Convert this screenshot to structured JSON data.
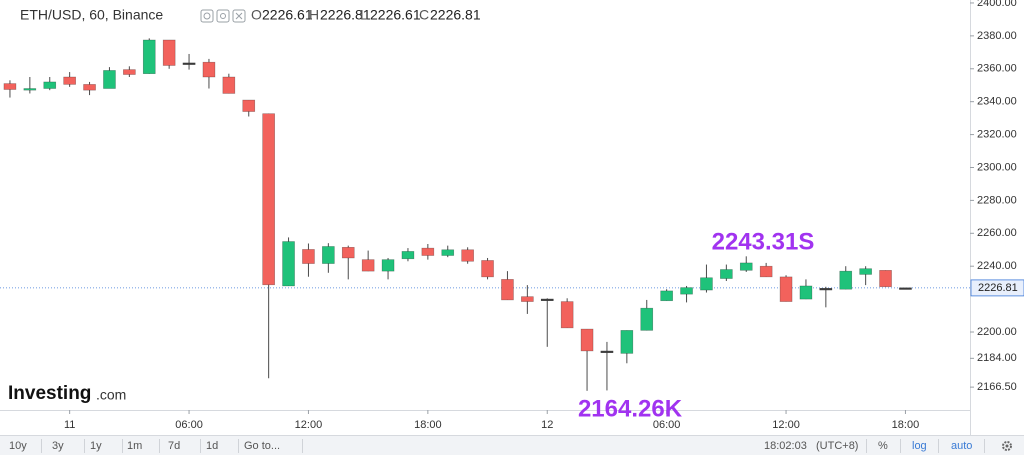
{
  "chart_data": {
    "type": "candlestick",
    "title": "ETH/USD, 60, Binance",
    "ohlc_labels": [
      "O",
      "H",
      "L",
      "C"
    ],
    "categories": [
      null,
      null,
      null,
      "11",
      null,
      null,
      null,
      null,
      null,
      "06:00",
      null,
      null,
      null,
      null,
      null,
      "12:00",
      null,
      null,
      null,
      null,
      null,
      "18:00",
      null,
      null,
      null,
      null,
      null,
      "12",
      null,
      null,
      null,
      null,
      null,
      "06:00",
      null,
      null,
      null,
      null,
      null,
      "12:00",
      null,
      null,
      null,
      null,
      null,
      "18:00"
    ],
    "open": [
      2351,
      2347,
      2348,
      2355,
      2350.5,
      2348,
      2359.5,
      2357,
      2377.5,
      2363.5,
      2364,
      2355,
      2341,
      2332.7,
      2228,
      2250.2,
      2241.6,
      2251.5,
      2244,
      2237,
      2244.5,
      2251,
      2246.5,
      2250,
      2243.5,
      2232,
      2221.5,
      2220,
      2218.5,
      2201.8,
      2188,
      2187,
      2201,
      2219,
      2223,
      2225.5,
      2232.5,
      2237.5,
      2240,
      2233.5,
      2220,
      2226.5,
      2226,
      2235,
      2237.5,
      2226.61
    ],
    "high": [
      2353,
      2355,
      2355,
      2358,
      2352,
      2361,
      2361.5,
      2378.5,
      2377.5,
      2369,
      2366,
      2357,
      2341,
      2332.7,
      2257.5,
      2253.8,
      2254,
      2252.5,
      2249.5,
      2245,
      2251,
      2253.5,
      2252.5,
      2251.5,
      2245,
      2237,
      2228.5,
      2220.5,
      2220.5,
      2201.8,
      2194,
      2201,
      2219.5,
      2226,
      2228,
      2241,
      2241,
      2246,
      2242,
      2234.5,
      2232,
      2227.5,
      2240,
      2240,
      2237.5,
      2226.81
    ],
    "low": [
      2342.5,
      2345,
      2347,
      2349,
      2344,
      2348,
      2355,
      2357,
      2360,
      2359.5,
      2348,
      2345,
      2331,
      2171.9,
      2228,
      2233.6,
      2236,
      2232,
      2237,
      2232,
      2243,
      2244,
      2245.5,
      2241.5,
      2232,
      2219.5,
      2211,
      2191,
      2202.5,
      2164.26,
      2164.5,
      2181,
      2201,
      2219,
      2218,
      2224,
      2231,
      2236.5,
      2233.5,
      2218.5,
      2220,
      2215,
      2226,
      2228.5,
      2227.5,
      2226.61
    ],
    "close": [
      2347.4,
      2348,
      2352,
      2350.5,
      2347,
      2359,
      2356.5,
      2377.5,
      2362,
      2363,
      2355,
      2345,
      2334,
      2228.7,
      2255,
      2241.6,
      2252,
      2245,
      2237,
      2244,
      2249,
      2246.5,
      2250,
      2243,
      2233.5,
      2219.5,
      2218.5,
      2219.6,
      2202.5,
      2188.5,
      2188.4,
      2201,
      2214.5,
      2225,
      2227,
      2233,
      2238,
      2242,
      2233.5,
      2218.5,
      2228,
      2226,
      2237,
      2238.5,
      2227.5,
      2226.81
    ],
    "colors": {
      "up": "#1fc27a",
      "down": "#f2625c",
      "flat": "#3a3a3a",
      "wick": "#4a4a4a",
      "annotation": "#a133f0",
      "price_line": "#3c78d8"
    },
    "ylim": [
      2152.6,
      2401.8
    ],
    "yticks": [
      {
        "value": 2400,
        "label": "2400.00"
      },
      {
        "value": 2380,
        "label": "2380.00"
      },
      {
        "value": 2360,
        "label": "2360.00"
      },
      {
        "value": 2340,
        "label": "2340.00"
      },
      {
        "value": 2320,
        "label": "2320.00"
      },
      {
        "value": 2300,
        "label": "2300.00"
      },
      {
        "value": 2280,
        "label": "2280.00"
      },
      {
        "value": 2260,
        "label": "2260.00"
      },
      {
        "value": 2240,
        "label": "2240.00"
      },
      {
        "value": 2200,
        "label": "2200.00"
      },
      {
        "value": 2184,
        "label": "2184.00"
      },
      {
        "value": 2166.5,
        "label": "2166.50"
      }
    ],
    "grid": false,
    "annotations": [
      "2243.31S",
      "2164.26K"
    ],
    "watermark": {
      "brand": "Investing",
      "suffix": ".com"
    }
  },
  "toolbar": {
    "ranges": [
      "10y",
      "3y",
      "1y",
      "1m",
      "7d",
      "1d"
    ],
    "goto": "Go to...",
    "time": "18:02:03",
    "timezone": "(UTC+8)",
    "percent": "%",
    "log": "log",
    "auto": "auto"
  }
}
